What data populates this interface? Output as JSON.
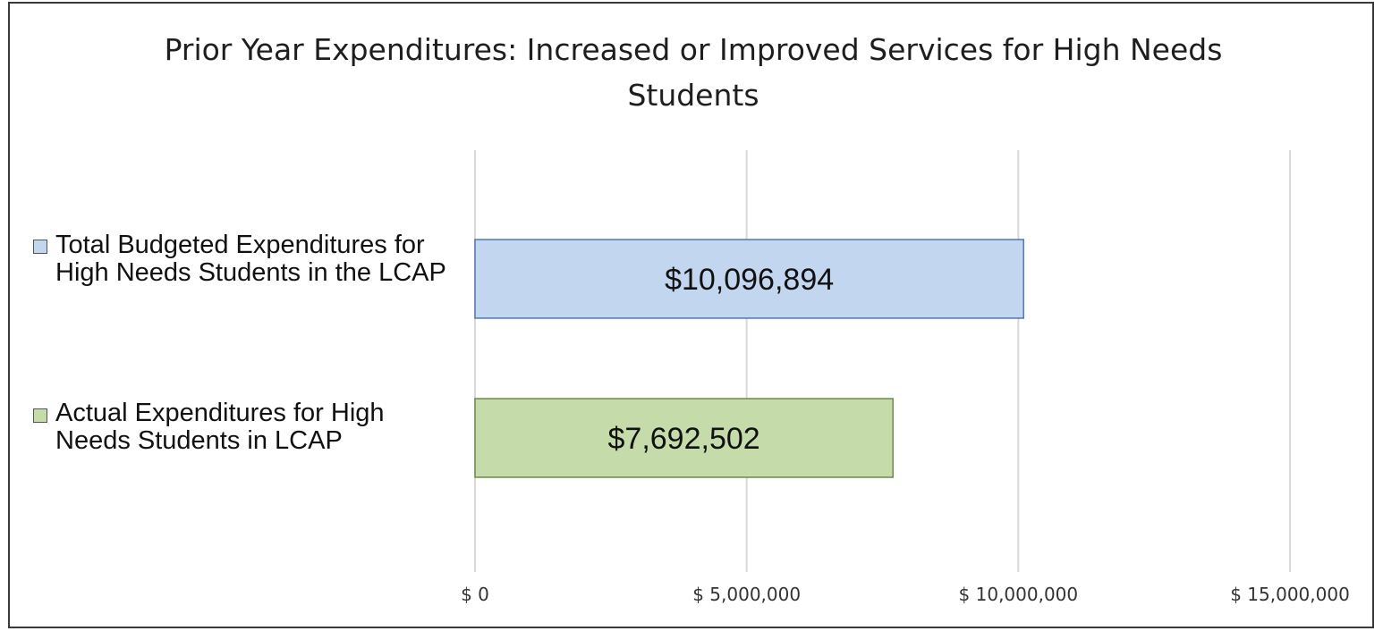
{
  "chart_data": {
    "type": "bar",
    "orientation": "horizontal",
    "title": "Prior Year Expenditures: Increased or Improved Services for High Needs Students",
    "categories": [
      "Total Budgeted Expenditures for High Needs Students in the LCAP",
      "Actual Expenditures for High Needs Students in LCAP"
    ],
    "values": [
      10096894,
      7692502
    ],
    "data_labels": [
      "$10,096,894",
      "$7,692,502"
    ],
    "xlim": [
      0,
      15000000
    ],
    "x_ticks": [
      0,
      5000000,
      10000000,
      15000000
    ],
    "x_tick_labels": [
      "$ 0",
      "$ 5,000,000",
      "$ 10,000,000",
      "$ 15,000,000"
    ],
    "grid": "vertical",
    "colors": {
      "bar_0": "#c3d6ef",
      "bar_0_edge": "#4f79b5",
      "bar_1": "#c6dbaa",
      "bar_1_edge": "#6e8a48",
      "gridline": "#d9d9d9",
      "border": "#3a3a3a"
    }
  }
}
